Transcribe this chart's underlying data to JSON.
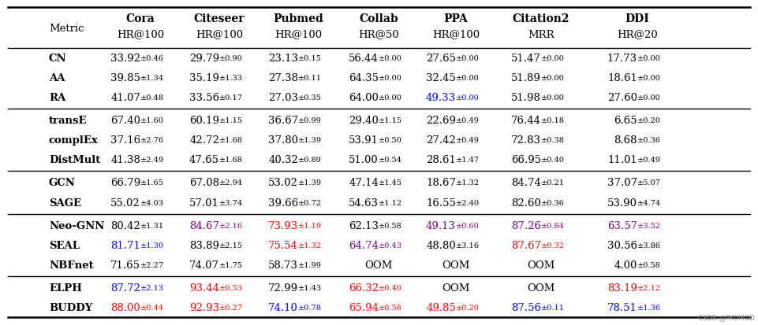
{
  "col_headers_line1": [
    "",
    "Cora",
    "Citeseer",
    "Pubmed",
    "Collab",
    "PPA",
    "Citation2",
    "DDI"
  ],
  "col_headers_line2": [
    "Metric",
    "HR@100",
    "HR@100",
    "HR@100",
    "HR@50",
    "HR@100",
    "MRR",
    "HR@20"
  ],
  "groups": [
    {
      "rows": [
        {
          "method": "CN",
          "method_color": "black",
          "values": [
            "33.92",
            "0.46",
            "29.79",
            "0.90",
            "23.13",
            "0.15",
            "56.44",
            "0.00",
            "27.65",
            "0.00",
            "51.47",
            "0.00",
            "17.73",
            "0.00"
          ],
          "colors": [
            "black",
            "black",
            "black",
            "black",
            "black",
            "black",
            "black"
          ]
        },
        {
          "method": "AA",
          "method_color": "black",
          "values": [
            "39.85",
            "1.34",
            "35.19",
            "1.33",
            "27.38",
            "0.11",
            "64.35",
            "0.00",
            "32.45",
            "0.00",
            "51.89",
            "0.00",
            "18.61",
            "0.00"
          ],
          "colors": [
            "black",
            "black",
            "black",
            "black",
            "black",
            "black",
            "black"
          ]
        },
        {
          "method": "RA",
          "method_color": "black",
          "values": [
            "41.07",
            "0.48",
            "33.56",
            "0.17",
            "27.03",
            "0.35",
            "64.00",
            "0.00",
            "49.33",
            "0.00",
            "51.98",
            "0.00",
            "27.60",
            "0.00"
          ],
          "colors": [
            "black",
            "black",
            "black",
            "black",
            "blue",
            "black",
            "black"
          ]
        }
      ]
    },
    {
      "rows": [
        {
          "method": "transE",
          "method_color": "black",
          "values": [
            "67.40",
            "1.60",
            "60.19",
            "1.15",
            "36.67",
            "0.99",
            "29.40",
            "1.15",
            "22.69",
            "0.49",
            "76.44",
            "0.18",
            "6.65",
            "0.20"
          ],
          "colors": [
            "black",
            "black",
            "black",
            "black",
            "black",
            "black",
            "black"
          ]
        },
        {
          "method": "complEx",
          "method_color": "black",
          "values": [
            "37.16",
            "2.76",
            "42.72",
            "1.68",
            "37.80",
            "1.39",
            "53.91",
            "0.50",
            "27.42",
            "0.49",
            "72.83",
            "0.38",
            "8.68",
            "0.36"
          ],
          "colors": [
            "black",
            "black",
            "black",
            "black",
            "black",
            "black",
            "black"
          ]
        },
        {
          "method": "DistMult",
          "method_color": "black",
          "values": [
            "41.38",
            "2.49",
            "47.65",
            "1.68",
            "40.32",
            "0.89",
            "51.00",
            "0.54",
            "28.61",
            "1.47",
            "66.95",
            "0.40",
            "11.01",
            "0.49"
          ],
          "colors": [
            "black",
            "black",
            "black",
            "black",
            "black",
            "black",
            "black"
          ]
        }
      ]
    },
    {
      "rows": [
        {
          "method": "GCN",
          "method_color": "black",
          "values": [
            "66.79",
            "1.65",
            "67.08",
            "2.94",
            "53.02",
            "1.39",
            "47.14",
            "1.45",
            "18.67",
            "1.32",
            "84.74",
            "0.21",
            "37.07",
            "5.07"
          ],
          "colors": [
            "black",
            "black",
            "black",
            "black",
            "black",
            "black",
            "black"
          ]
        },
        {
          "method": "SAGE",
          "method_color": "black",
          "values": [
            "55.02",
            "4.03",
            "57.01",
            "3.74",
            "39.66",
            "0.72",
            "54.63",
            "1.12",
            "16.55",
            "2.40",
            "82.60",
            "0.36",
            "53.90",
            "4.74"
          ],
          "colors": [
            "black",
            "black",
            "black",
            "black",
            "black",
            "black",
            "black"
          ]
        }
      ]
    },
    {
      "rows": [
        {
          "method": "Neo-GNN",
          "method_color": "black",
          "values": [
            "80.42",
            "1.31",
            "84.67",
            "2.16",
            "73.93",
            "1.19",
            "62.13",
            "0.58",
            "49.13",
            "0.60",
            "87.26",
            "0.84",
            "63.57",
            "3.52"
          ],
          "colors": [
            "black",
            "purple",
            "red",
            "black",
            "purple",
            "purple",
            "purple"
          ]
        },
        {
          "method": "SEAL",
          "method_color": "black",
          "values": [
            "81.71",
            "1.30",
            "83.89",
            "2.15",
            "75.54",
            "1.32",
            "64.74",
            "0.43",
            "48.80",
            "3.16",
            "87.67",
            "0.32",
            "30.56",
            "3.86"
          ],
          "colors": [
            "blue",
            "black",
            "red",
            "purple",
            "black",
            "red",
            "black"
          ]
        },
        {
          "method": "NBFnet",
          "method_color": "black",
          "values": [
            "71.65",
            "2.27",
            "74.07",
            "1.75",
            "58.73",
            "1.99",
            "OOM",
            "",
            "OOM",
            "",
            "OOM",
            "",
            "4.00",
            "0.58"
          ],
          "colors": [
            "black",
            "black",
            "black",
            "black",
            "black",
            "black",
            "black"
          ]
        }
      ]
    },
    {
      "rows": [
        {
          "method": "ELPH",
          "method_color": "black",
          "values": [
            "87.72",
            "2.13",
            "93.44",
            "0.53",
            "72.99",
            "1.43",
            "66.32",
            "0.40",
            "OOM",
            "",
            "OOM",
            "",
            "83.19",
            "2.12"
          ],
          "colors": [
            "blue",
            "red",
            "black",
            "red",
            "black",
            "black",
            "red"
          ]
        },
        {
          "method": "BUDDY",
          "method_color": "black",
          "values": [
            "88.00",
            "0.44",
            "92.93",
            "0.27",
            "74.10",
            "0.78",
            "65.94",
            "0.58",
            "49.85",
            "0.20",
            "87.56",
            "0.11",
            "78.51",
            "1.36"
          ],
          "colors": [
            "red",
            "red",
            "blue",
            "red",
            "red",
            "blue",
            "blue"
          ]
        }
      ]
    }
  ]
}
